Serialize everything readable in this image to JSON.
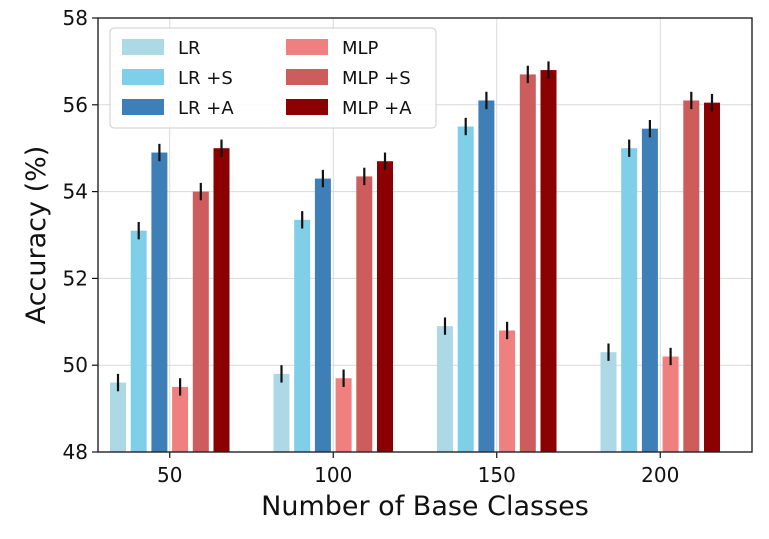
{
  "chart_data": {
    "type": "bar",
    "title": "",
    "xlabel": "Number of Base Classes",
    "ylabel": "Accuracy (%)",
    "ylim": [
      48,
      58
    ],
    "yticks": [
      "48",
      "50",
      "52",
      "54",
      "56",
      "58"
    ],
    "grid": true,
    "legend_position": "top-left",
    "categories": [
      "50",
      "100",
      "150",
      "200"
    ],
    "series": [
      {
        "name": "LR",
        "color": "#add8e6",
        "values": [
          49.6,
          49.8,
          50.9,
          50.3
        ],
        "errors": [
          0.2,
          0.2,
          0.2,
          0.2
        ]
      },
      {
        "name": "LR +S",
        "color": "#7fcfe8",
        "values": [
          53.1,
          53.35,
          55.5,
          55.0
        ],
        "errors": [
          0.2,
          0.2,
          0.2,
          0.2
        ]
      },
      {
        "name": "LR +A",
        "color": "#3f7fb8",
        "values": [
          54.9,
          54.3,
          56.1,
          55.45
        ],
        "errors": [
          0.2,
          0.2,
          0.2,
          0.2
        ]
      },
      {
        "name": "MLP",
        "color": "#f08080",
        "values": [
          49.5,
          49.7,
          50.8,
          50.2
        ],
        "errors": [
          0.2,
          0.2,
          0.2,
          0.2
        ]
      },
      {
        "name": "MLP +S",
        "color": "#cd5c5c",
        "values": [
          54.0,
          54.35,
          56.7,
          56.1
        ],
        "errors": [
          0.2,
          0.2,
          0.2,
          0.2
        ]
      },
      {
        "name": "MLP +A",
        "color": "#8b0000",
        "values": [
          55.0,
          54.7,
          56.8,
          56.05
        ],
        "errors": [
          0.2,
          0.2,
          0.2,
          0.2
        ]
      }
    ]
  }
}
